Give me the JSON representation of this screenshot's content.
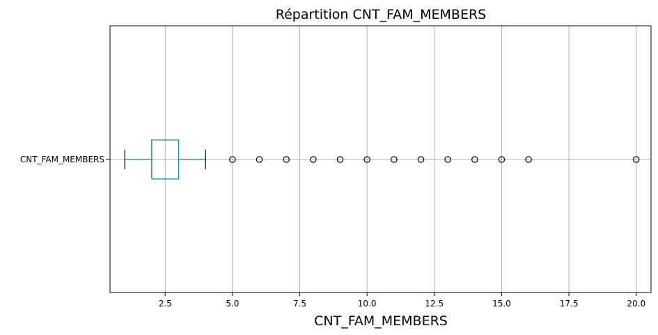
{
  "chart_data": {
    "type": "boxplot",
    "orientation": "horizontal",
    "title": "Répartition  CNT_FAM_MEMBERS",
    "xlabel": "CNT_FAM_MEMBERS",
    "ylabel": "",
    "xlim": [
      0.45,
      20.55
    ],
    "xticks": [
      2.5,
      5.0,
      7.5,
      10.0,
      12.5,
      15.0,
      17.5,
      20.0
    ],
    "xtick_labels": [
      "2.5",
      "5.0",
      "7.5",
      "10.0",
      "12.5",
      "15.0",
      "17.5",
      "20.0"
    ],
    "grid": true,
    "category": "CNT_FAM_MEMBERS",
    "box": {
      "whisker_low": 1,
      "q1": 2,
      "median": 2,
      "q3": 3,
      "whisker_high": 4
    },
    "outliers": [
      5,
      6,
      7,
      8,
      9,
      10,
      11,
      12,
      13,
      14,
      15,
      16,
      20
    ],
    "colors": {
      "box": "#1f77b4",
      "median": "#2ca02c",
      "whisker": "#1f77b4",
      "cap": "#000000",
      "flier": "#000000",
      "grid": "#b0b0b0"
    }
  }
}
